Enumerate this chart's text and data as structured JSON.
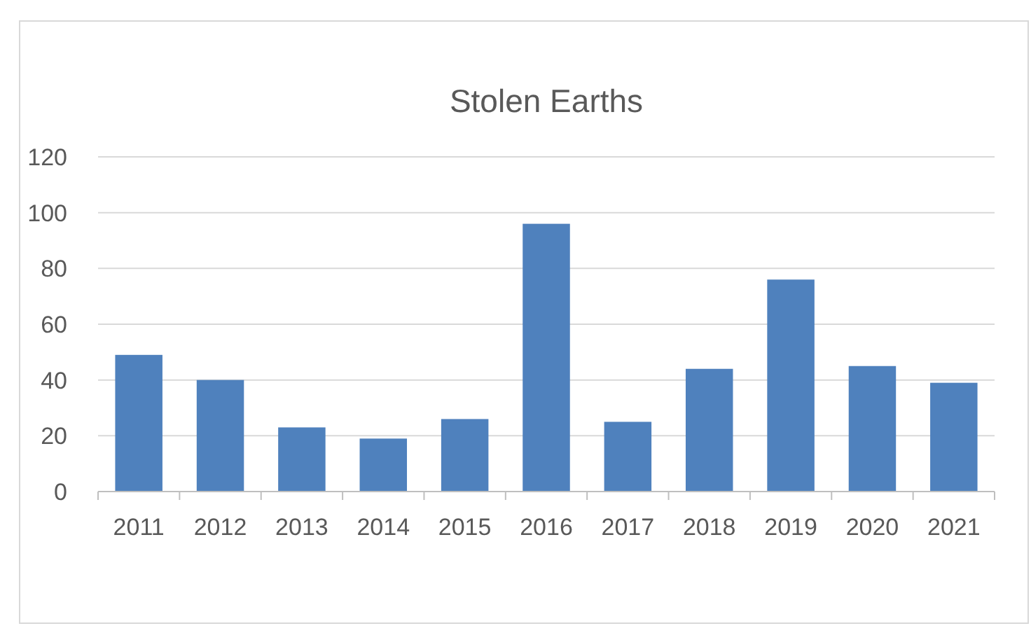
{
  "chart_data": {
    "type": "bar",
    "title": "Stolen Earths",
    "categories": [
      "2011",
      "2012",
      "2013",
      "2014",
      "2015",
      "2016",
      "2017",
      "2018",
      "2019",
      "2020",
      "2021"
    ],
    "values": [
      49,
      40,
      23,
      19,
      26,
      96,
      25,
      44,
      76,
      45,
      39
    ],
    "color": "#4f81bd",
    "ylim": [
      0,
      120
    ],
    "yticks": [
      0,
      20,
      40,
      60,
      80,
      100,
      120
    ],
    "grid": "y"
  }
}
